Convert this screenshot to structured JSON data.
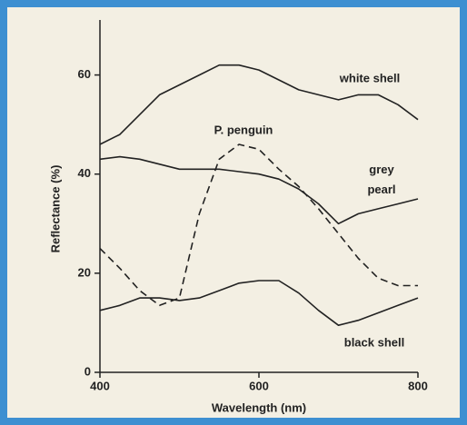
{
  "chart_data": {
    "type": "line",
    "xlabel": "Wavelength (nm)",
    "ylabel": "Reflectance (%)",
    "x": [
      400,
      425,
      450,
      475,
      500,
      525,
      550,
      575,
      600,
      625,
      650,
      675,
      700,
      725,
      750,
      775,
      800
    ],
    "series": [
      {
        "name": "white shell",
        "color": "#222222",
        "dash": false,
        "values": [
          46,
          48,
          52,
          56,
          58,
          60,
          62,
          62,
          61,
          59,
          57,
          56,
          55,
          56,
          56,
          54,
          51
        ]
      },
      {
        "name": "P. penguin",
        "color": "#222222",
        "dash": true,
        "values": [
          25,
          21,
          16.5,
          13.5,
          15,
          32,
          43,
          46,
          45,
          41,
          37.5,
          33,
          28,
          23,
          19,
          17.5,
          17.5
        ]
      },
      {
        "name": "grey pearl",
        "color": "#222222",
        "dash": false,
        "values": [
          43,
          43.5,
          43,
          42,
          41,
          41,
          41,
          40.5,
          40,
          39,
          37,
          34,
          30,
          32,
          33,
          34,
          35
        ]
      },
      {
        "name": "black shell",
        "color": "#222222",
        "dash": false,
        "values": [
          12.5,
          13.5,
          15,
          15,
          14.5,
          15,
          16.5,
          18,
          18.5,
          18.5,
          16,
          12.5,
          9.5,
          10.5,
          12,
          13.5,
          15
        ]
      }
    ],
    "xlim": [
      400,
      800
    ],
    "xticks": [
      400,
      600,
      800
    ],
    "ylim": [
      0,
      70
    ],
    "yticks": [
      0,
      20,
      40,
      60
    ],
    "grid": false
  }
}
